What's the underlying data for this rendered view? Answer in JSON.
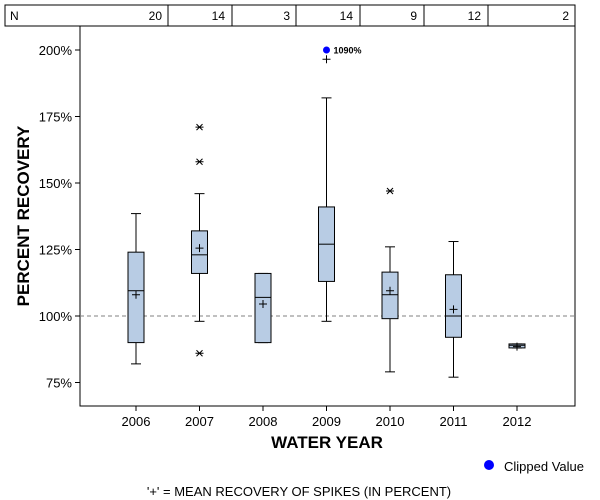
{
  "chart_data": {
    "type": "boxplot",
    "title": "",
    "xlabel": "WATER YEAR",
    "ylabel": "PERCENT RECOVERY",
    "ylim": [
      65,
      215
    ],
    "yticks": [
      75,
      100,
      125,
      150,
      175,
      200
    ],
    "ytick_labels": [
      "75%",
      "100%",
      "125%",
      "150%",
      "175%",
      "200%"
    ],
    "reference_line": 100,
    "n_label": "N",
    "categories": [
      "2006",
      "2007",
      "2008",
      "2009",
      "2010",
      "2011",
      "2012"
    ],
    "counts": [
      "20",
      "14",
      "3",
      "14",
      "9",
      "12",
      "2"
    ],
    "boxes": [
      {
        "year": "2006",
        "whisker_low": 82,
        "q1": 90,
        "median": 109.5,
        "q3": 124,
        "whisker_high": 138.5,
        "mean": 108,
        "outliers": []
      },
      {
        "year": "2007",
        "whisker_low": 98,
        "q1": 116,
        "median": 123,
        "q3": 132,
        "whisker_high": 146,
        "mean": 125.5,
        "outliers": [
          86,
          158,
          171
        ]
      },
      {
        "year": "2008",
        "whisker_low": 90,
        "q1": 90,
        "median": 107,
        "q3": 116,
        "whisker_high": 116,
        "mean": 104.5,
        "outliers": []
      },
      {
        "year": "2009",
        "whisker_low": 98,
        "q1": 113,
        "median": 127,
        "q3": 141,
        "whisker_high": 182,
        "mean": 196.5,
        "outliers": []
      },
      {
        "year": "2010",
        "whisker_low": 79,
        "q1": 99,
        "median": 108,
        "q3": 116.5,
        "whisker_high": 126,
        "mean": 109.5,
        "outliers": [
          147
        ]
      },
      {
        "year": "2011",
        "whisker_low": 77,
        "q1": 92,
        "median": 100,
        "q3": 115.5,
        "whisker_high": 128,
        "mean": 102.5,
        "outliers": []
      },
      {
        "year": "2012",
        "whisker_low": 88,
        "q1": 88,
        "median": 89,
        "q3": 89.5,
        "whisker_high": 89.5,
        "mean": 88.5,
        "outliers": []
      }
    ],
    "clipped": [
      {
        "year": "2009",
        "value": 200,
        "label": "1090%"
      }
    ],
    "legend": {
      "clipped_label": "Clipped Value",
      "clipped_color": "#0000ff",
      "position": "bottom-right"
    },
    "footnote": "'+' = MEAN RECOVERY OF SPIKES (IN PERCENT)",
    "colors": {
      "box_fill": "#b8cce4",
      "line": "#000000",
      "reference": "#808080"
    }
  }
}
